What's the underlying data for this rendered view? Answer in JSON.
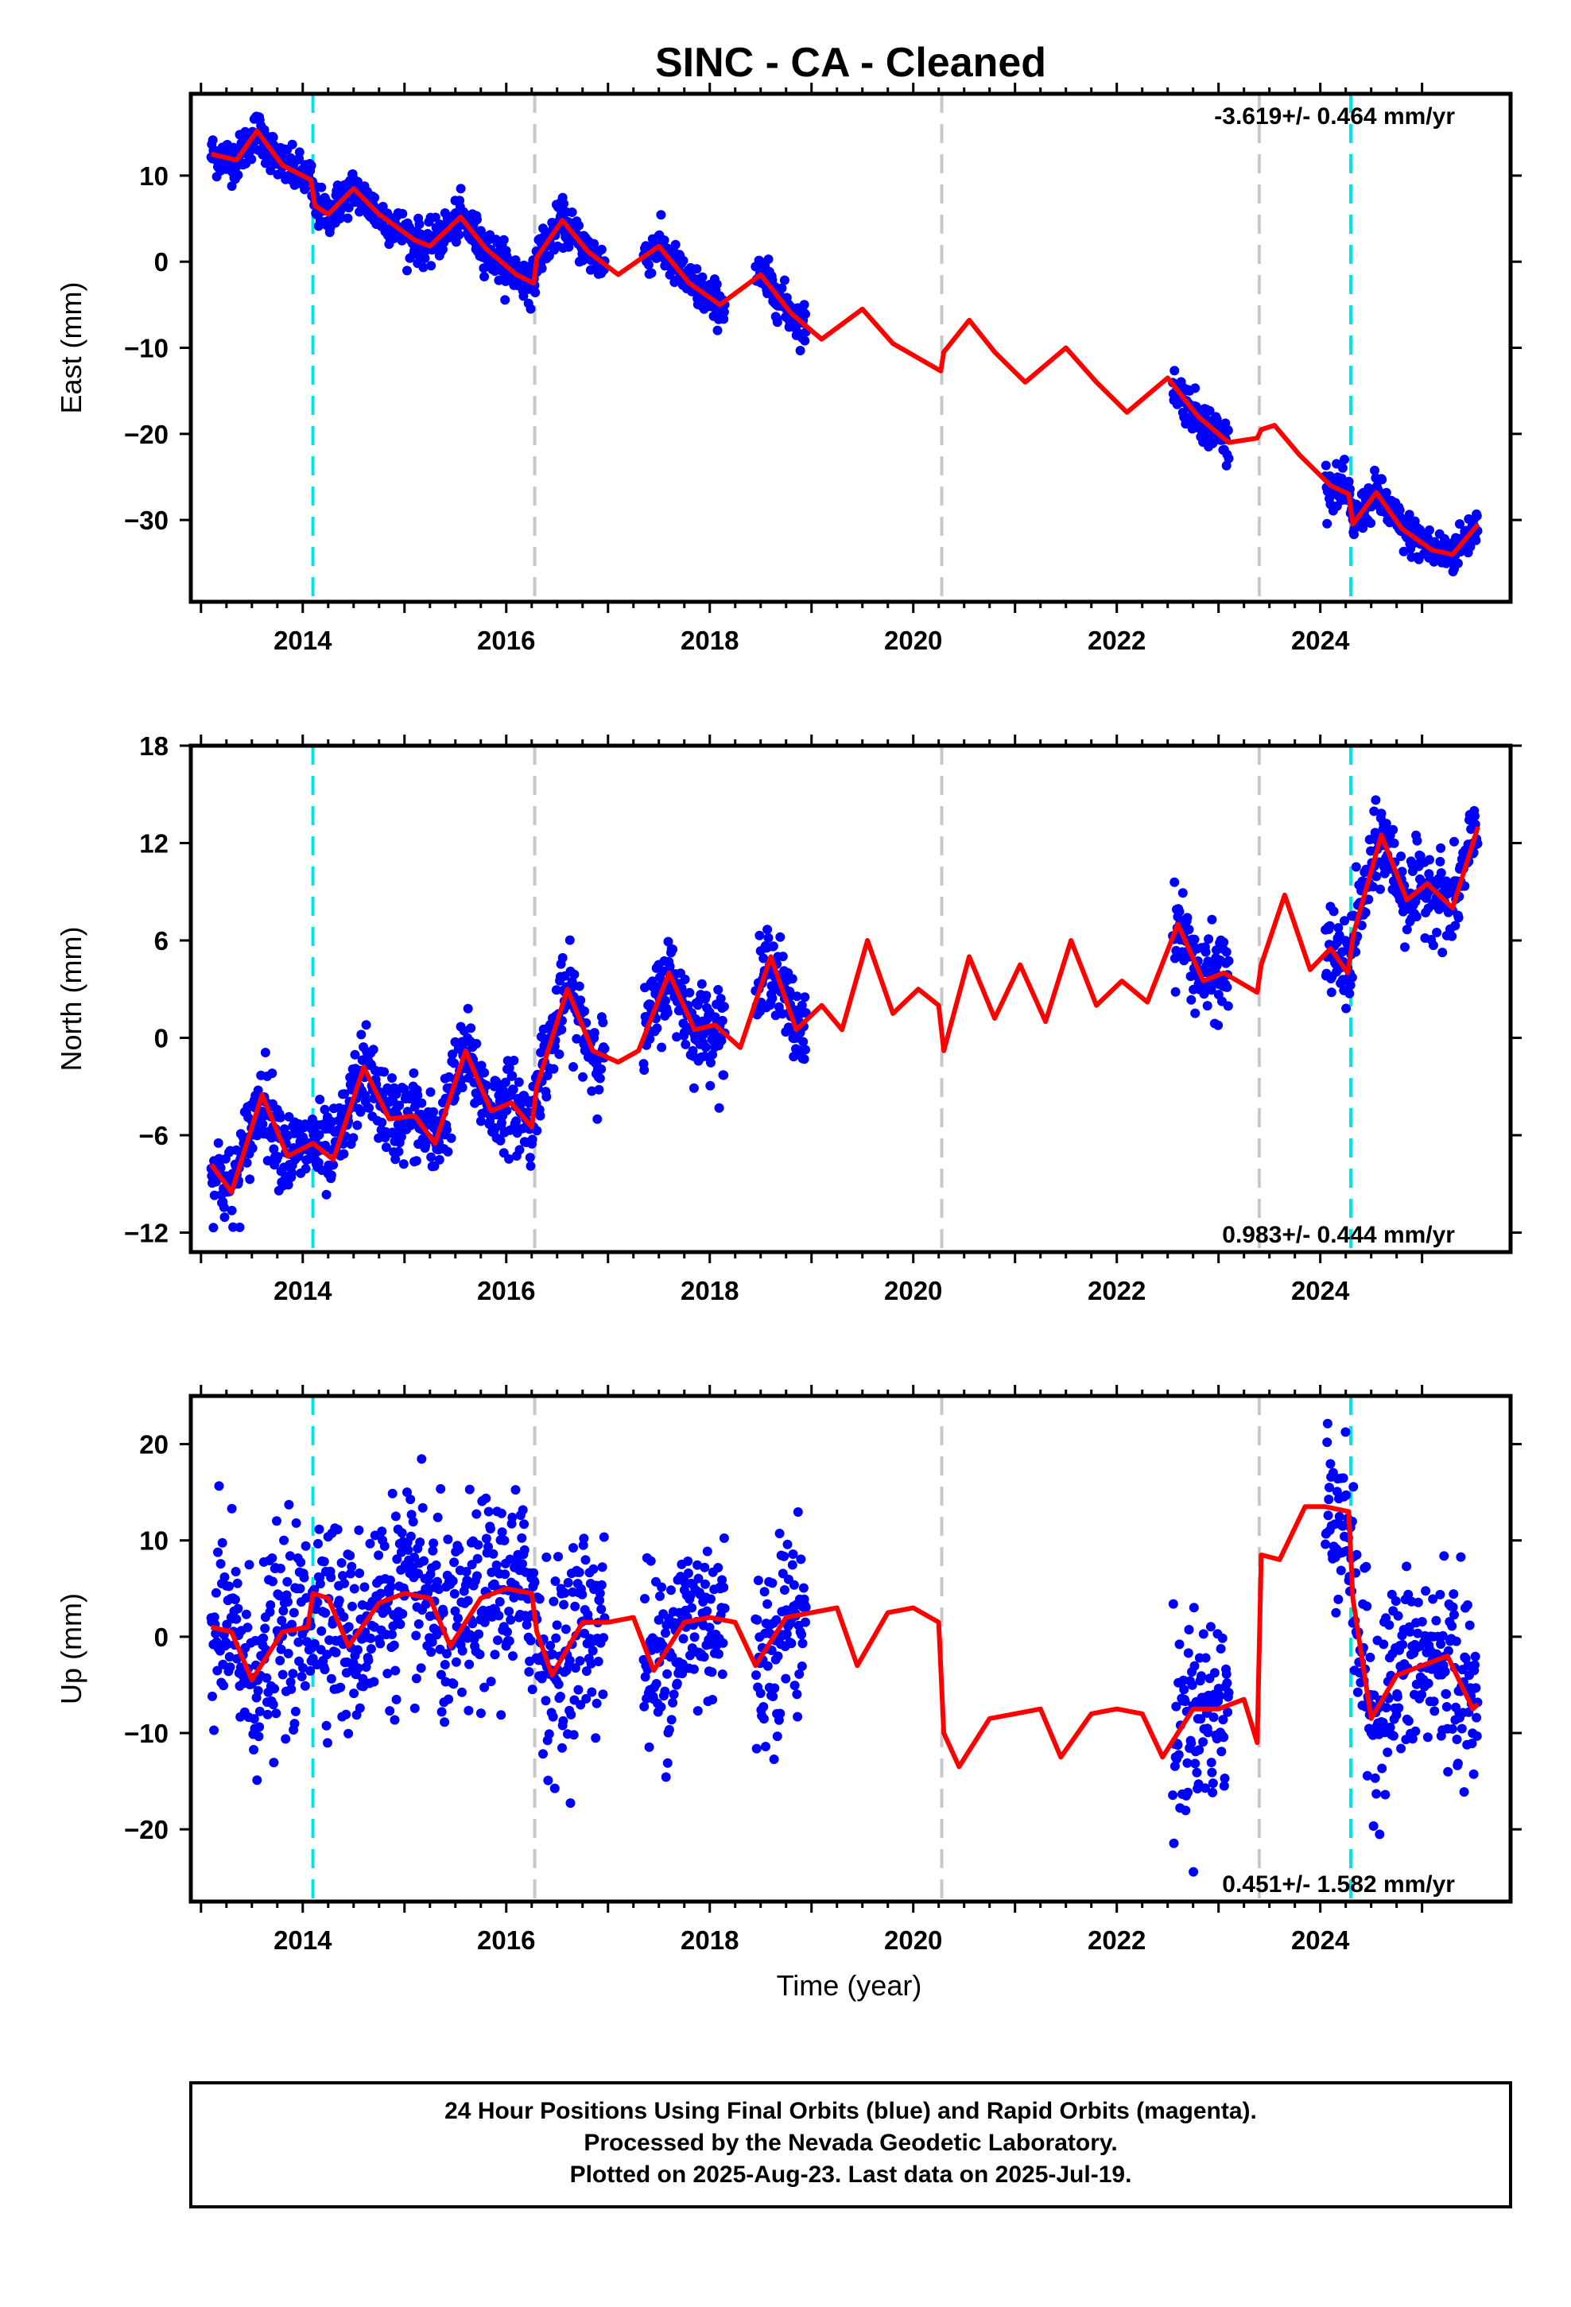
{
  "title": "SINC  - CA - Cleaned",
  "xlabel": "Time (year)",
  "footer": [
    "24 Hour Positions Using Final Orbits (blue) and Rapid Orbits (magenta).",
    "Processed by the Nevada Geodetic Laboratory.",
    "Plotted on 2025-Aug-23. Last data on 2025-Jul-19."
  ],
  "colors": {
    "data": "#0000ff",
    "model": "#ff0000",
    "equipment_change": "#c8c8c8",
    "earthquake": "#00e5e5"
  },
  "chart_data": [
    {
      "type": "scatter",
      "ylabel": "East (mm)",
      "rate_label": "-3.619+/- 0.464 mm/yr",
      "xlim": [
        2012.9,
        2025.87
      ],
      "ylim": [
        -39.5,
        19.5
      ],
      "xticks": [
        2014,
        2016,
        2018,
        2020,
        2022,
        2024
      ],
      "yticks": [
        -30,
        -20,
        -10,
        0,
        10
      ],
      "vlines_gray": [
        2016.28,
        2020.28,
        2023.4
      ],
      "vlines_cyan": [
        2014.1,
        2024.3
      ],
      "model": {
        "x": [
          2013.1,
          2013.35,
          2013.55,
          2013.8,
          2014.08,
          2014.12,
          2014.25,
          2014.5,
          2014.75,
          2015.1,
          2015.25,
          2015.55,
          2015.8,
          2016.1,
          2016.27,
          2016.3,
          2016.55,
          2016.8,
          2017.1,
          2017.5,
          2017.8,
          2018.1,
          2018.5,
          2018.8,
          2019.1,
          2019.5,
          2019.8,
          2020.27,
          2020.3,
          2020.55,
          2020.8,
          2021.1,
          2021.5,
          2021.8,
          2022.1,
          2022.5,
          2022.8,
          2023.1,
          2023.38,
          2023.42,
          2023.55,
          2023.8,
          2024.1,
          2024.28,
          2024.32,
          2024.55,
          2024.8,
          2025.1,
          2025.3,
          2025.55
        ],
        "y": [
          12.5,
          11.8,
          15.2,
          11.2,
          9.5,
          6.5,
          5.5,
          8.5,
          5.5,
          2.5,
          1.8,
          5.2,
          1.5,
          -1.5,
          -2.5,
          0.5,
          4.8,
          1.2,
          -1.5,
          1.8,
          -2.5,
          -5.0,
          -1.5,
          -6.0,
          -9.0,
          -5.5,
          -9.5,
          -12.7,
          -10.5,
          -6.8,
          -10.5,
          -14.0,
          -10.0,
          -14.0,
          -17.5,
          -13.5,
          -18.0,
          -21.0,
          -20.5,
          -19.5,
          -19.0,
          -22.5,
          -26.0,
          -27.0,
          -30.5,
          -26.8,
          -31.0,
          -33.5,
          -34.0,
          -30.5
        ]
      },
      "data_spans": [
        [
          2013.1,
          2016.97
        ],
        [
          2017.35,
          2018.15
        ],
        [
          2018.45,
          2018.95
        ],
        [
          2022.55,
          2023.1
        ],
        [
          2024.05,
          2025.55
        ]
      ],
      "noise_mm": 1.2
    },
    {
      "type": "scatter",
      "ylabel": "North (mm)",
      "rate_label": "0.983+/- 0.444 mm/yr",
      "xlim": [
        2012.9,
        2025.87
      ],
      "ylim": [
        -13.2,
        18.0
      ],
      "xticks": [
        2014,
        2016,
        2018,
        2020,
        2022,
        2024
      ],
      "yticks": [
        -12,
        -6,
        0,
        6,
        12,
        18
      ],
      "vlines_gray": [
        2016.28,
        2020.28,
        2023.4
      ],
      "vlines_cyan": [
        2014.1,
        2024.3
      ],
      "model": {
        "x": [
          2013.1,
          2013.3,
          2013.6,
          2013.85,
          2014.1,
          2014.3,
          2014.6,
          2014.85,
          2015.1,
          2015.3,
          2015.6,
          2015.85,
          2016.05,
          2016.25,
          2016.3,
          2016.6,
          2016.85,
          2017.1,
          2017.3,
          2017.6,
          2017.85,
          2018.05,
          2018.3,
          2018.6,
          2018.85,
          2019.1,
          2019.3,
          2019.55,
          2019.8,
          2020.05,
          2020.25,
          2020.3,
          2020.55,
          2020.8,
          2021.05,
          2021.3,
          2021.55,
          2021.8,
          2022.05,
          2022.3,
          2022.6,
          2022.85,
          2023.05,
          2023.38,
          2023.42,
          2023.65,
          2023.9,
          2024.1,
          2024.27,
          2024.33,
          2024.6,
          2024.85,
          2025.05,
          2025.3,
          2025.55
        ],
        "y": [
          -7.8,
          -9.5,
          -3.5,
          -7.3,
          -6.5,
          -7.5,
          -1.8,
          -5.0,
          -4.8,
          -6.5,
          -0.8,
          -4.5,
          -4.0,
          -5.5,
          -3.0,
          3.0,
          -0.8,
          -1.5,
          -0.8,
          4.0,
          0.5,
          0.8,
          -0.6,
          5.0,
          0.5,
          2.0,
          0.5,
          6.0,
          1.5,
          3.0,
          2.0,
          -0.8,
          5.0,
          1.2,
          4.5,
          1.0,
          6.0,
          2.0,
          3.5,
          2.2,
          7.0,
          3.5,
          4.0,
          2.8,
          4.5,
          8.8,
          4.2,
          5.5,
          4.0,
          6.5,
          12.5,
          8.5,
          9.5,
          8.0,
          13.0
        ]
      },
      "data_spans": [
        [
          2013.1,
          2016.97
        ],
        [
          2017.35,
          2018.15
        ],
        [
          2018.45,
          2018.95
        ],
        [
          2022.55,
          2023.1
        ],
        [
          2024.05,
          2025.55
        ]
      ],
      "noise_mm": 1.3
    },
    {
      "type": "scatter",
      "ylabel": "Up (mm)",
      "rate_label": "0.451+/- 1.582 mm/yr",
      "xlim": [
        2012.9,
        2025.87
      ],
      "ylim": [
        -27.5,
        25.0
      ],
      "xticks": [
        2014,
        2016,
        2018,
        2020,
        2022,
        2024
      ],
      "yticks": [
        -20,
        -10,
        0,
        10,
        20
      ],
      "vlines_gray": [
        2016.28,
        2020.28,
        2023.4
      ],
      "vlines_cyan": [
        2014.1,
        2024.3
      ],
      "model": {
        "x": [
          2013.1,
          2013.3,
          2013.5,
          2013.8,
          2014.05,
          2014.1,
          2014.25,
          2014.45,
          2014.75,
          2015.0,
          2015.25,
          2015.45,
          2015.75,
          2016.0,
          2016.25,
          2016.3,
          2016.45,
          2016.75,
          2017.0,
          2017.25,
          2017.45,
          2017.75,
          2018.0,
          2018.25,
          2018.45,
          2018.75,
          2019.0,
          2019.25,
          2019.45,
          2019.75,
          2020.0,
          2020.25,
          2020.3,
          2020.45,
          2020.75,
          2021.0,
          2021.25,
          2021.45,
          2021.75,
          2022.0,
          2022.25,
          2022.45,
          2022.75,
          2023.0,
          2023.25,
          2023.38,
          2023.42,
          2023.6,
          2023.85,
          2024.05,
          2024.28,
          2024.32,
          2024.5,
          2024.75,
          2025.0,
          2025.25,
          2025.5,
          2025.55
        ],
        "y": [
          1.0,
          0.5,
          -4.5,
          0.5,
          1.0,
          4.5,
          4.0,
          -1.0,
          3.5,
          4.5,
          4.0,
          -1.0,
          4.0,
          5.0,
          4.5,
          0.5,
          -4.0,
          1.5,
          1.5,
          2.0,
          -3.5,
          1.5,
          2.0,
          1.5,
          -3.0,
          2.0,
          2.5,
          3.0,
          -3.0,
          2.5,
          3.0,
          1.5,
          -10.0,
          -13.5,
          -8.5,
          -8.0,
          -7.5,
          -12.5,
          -8.0,
          -7.5,
          -8.0,
          -12.5,
          -7.5,
          -7.5,
          -6.5,
          -11.0,
          8.5,
          8.0,
          13.5,
          13.5,
          13.0,
          4.0,
          -8.5,
          -4.0,
          -3.0,
          -2.0,
          -7.5,
          -7.0
        ]
      },
      "data_spans": [
        [
          2013.1,
          2016.97
        ],
        [
          2017.35,
          2018.15
        ],
        [
          2018.45,
          2018.95
        ],
        [
          2022.55,
          2023.1
        ],
        [
          2024.05,
          2025.55
        ]
      ],
      "noise_mm": 5.0
    }
  ]
}
